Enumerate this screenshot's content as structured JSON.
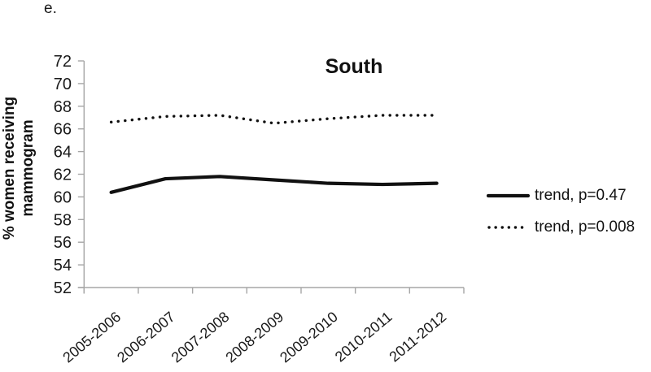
{
  "figure": {
    "label": "e."
  },
  "legend": {
    "items": [
      {
        "label": "trend, p=0.47",
        "style": "solid"
      },
      {
        "label": "trend, p=0.008",
        "style": "dotted"
      }
    ]
  },
  "chart_data": {
    "type": "line",
    "title": "South",
    "categories": [
      "2005-2006",
      "2006-2007",
      "2007-2008",
      "2008-2009",
      "2009-2010",
      "2010-2011",
      "2011-2012"
    ],
    "series": [
      {
        "name": "trend, p=0.47",
        "style": "solid",
        "values": [
          60.4,
          61.6,
          61.8,
          61.5,
          61.2,
          61.1,
          61.2
        ]
      },
      {
        "name": "trend, p=0.008",
        "style": "dotted",
        "values": [
          66.6,
          67.1,
          67.2,
          66.5,
          66.9,
          67.2,
          67.2
        ]
      }
    ],
    "xlabel": "",
    "ylabel": "% women receiving mammogram",
    "ylabel_lines": [
      "% women receiving",
      "mammogram"
    ],
    "ylim": [
      52,
      72
    ],
    "ytick_step": 2,
    "grid": false,
    "legend_position": "right",
    "colors": {
      "line": "#111111",
      "axis": "#a6a6a6",
      "text": "#1a1a1a"
    }
  }
}
